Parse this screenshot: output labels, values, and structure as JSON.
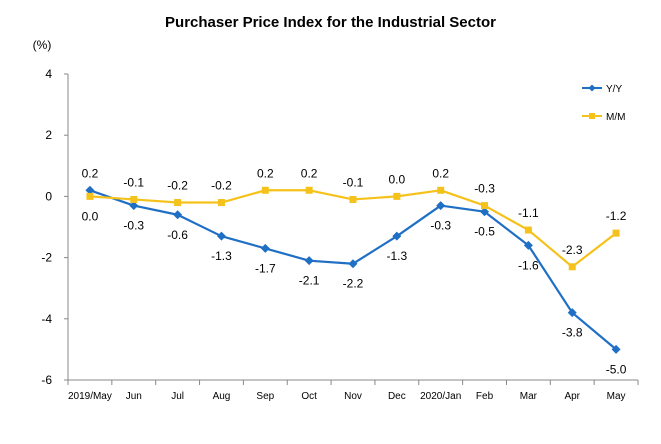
{
  "chart_data": {
    "type": "line",
    "title": "Purchaser Price Index for the Industrial  Sector",
    "ylabel": "(%)",
    "xlabel": "",
    "ylim": [
      -6,
      4
    ],
    "yticks": [
      4,
      2,
      0,
      -2,
      -4,
      -6
    ],
    "grid": false,
    "legend_position": "top-right",
    "categories": [
      "2019/May",
      "Jun",
      "Jul",
      "Aug",
      "Sep",
      "Oct",
      "Nov",
      "Dec",
      "2020/Jan",
      "Feb",
      "Mar",
      "Apr",
      "May"
    ],
    "series": [
      {
        "name": "Y/Y",
        "color": "#1f6fc5",
        "marker": "diamond",
        "values": [
          0.2,
          -0.3,
          -0.6,
          -1.3,
          -1.7,
          -2.1,
          -2.2,
          -1.3,
          -0.3,
          -0.5,
          -1.6,
          -3.8,
          -5.0
        ],
        "labels": [
          "0.2",
          "-0.3",
          "-0.6",
          "-1.3",
          "-1.7",
          "-2.1",
          "-2.2",
          "-1.3",
          "-0.3",
          "-0.5",
          "-1.6",
          "-3.8",
          "-5.0"
        ]
      },
      {
        "name": "M/M",
        "color": "#f5c21b",
        "marker": "square",
        "values": [
          0.0,
          -0.1,
          -0.2,
          -0.2,
          0.2,
          0.2,
          -0.1,
          0.0,
          0.2,
          -0.3,
          -1.1,
          -2.3,
          -1.2
        ],
        "labels": [
          "0.0",
          "-0.1",
          "-0.2",
          "-0.2",
          "0.2",
          "0.2",
          "-0.1",
          "0.0",
          "0.2",
          "-0.3",
          "-1.1",
          "-2.3",
          "-1.2"
        ]
      }
    ]
  }
}
